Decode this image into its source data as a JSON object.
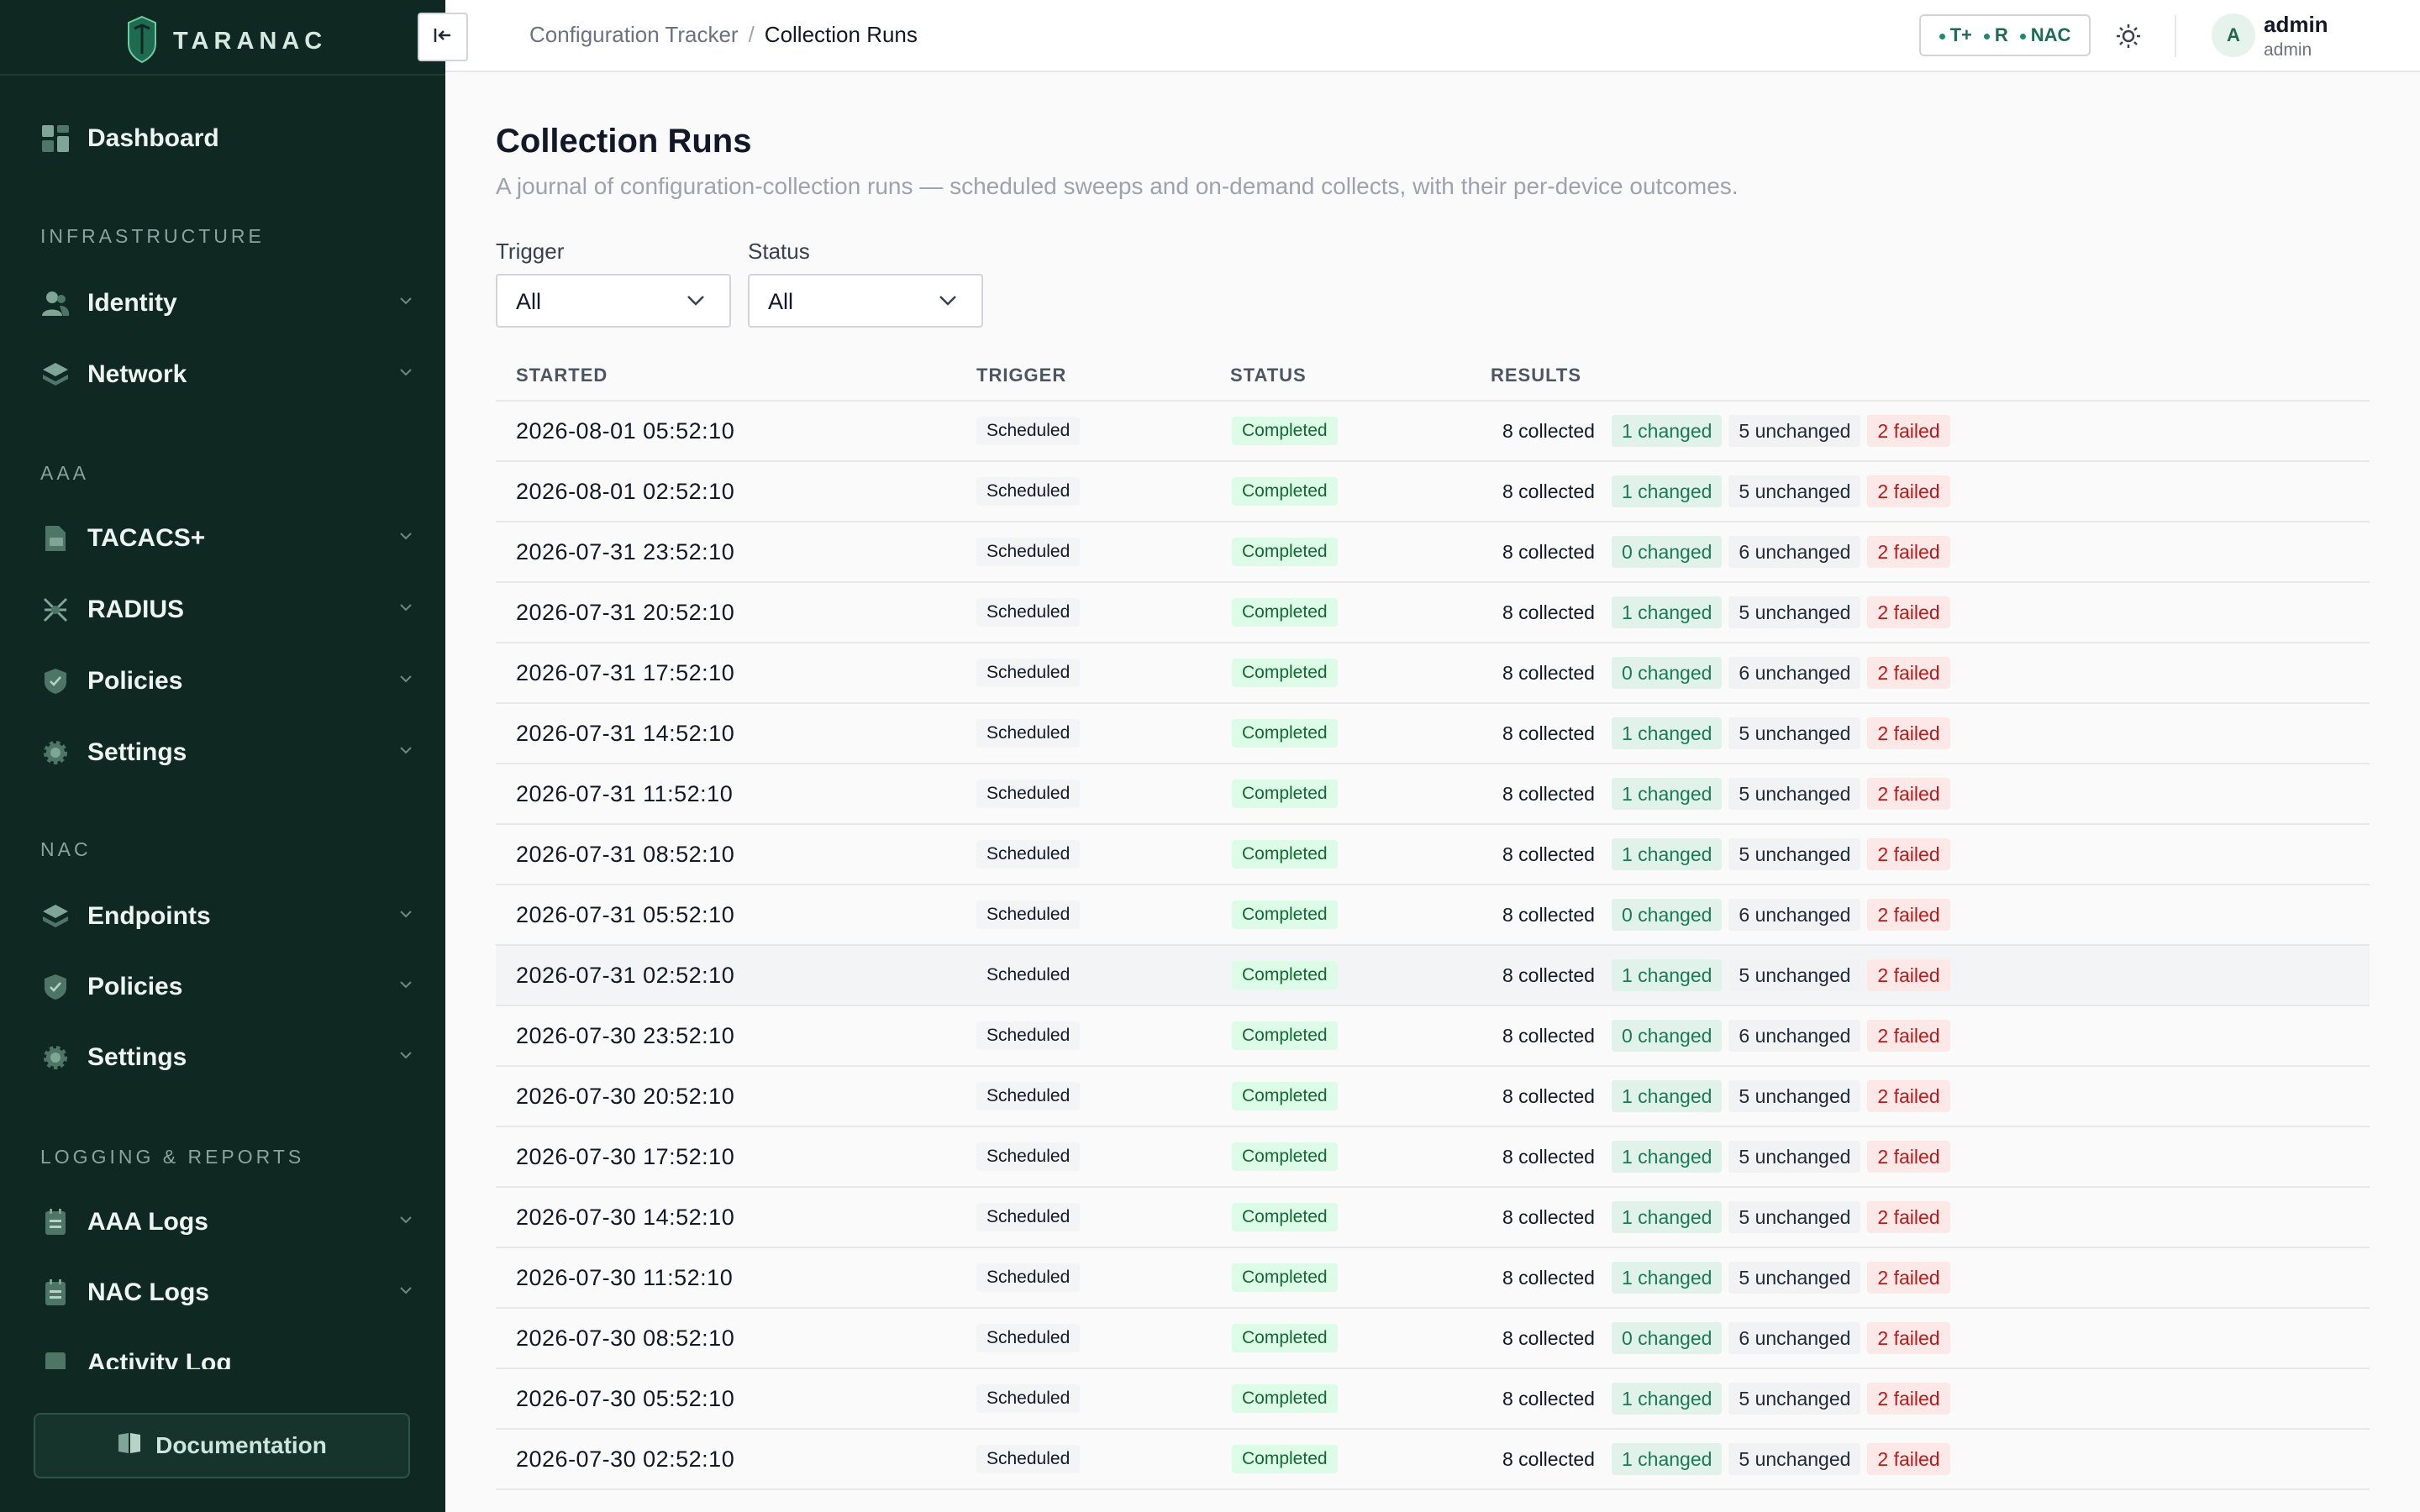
{
  "brand": {
    "name": "TARANAC"
  },
  "sidebar": {
    "dashboard": "Dashboard",
    "sections": [
      "INFRASTRUCTURE",
      "AAA",
      "NAC",
      "LOGGING & REPORTS"
    ],
    "infrastructure": [
      "Identity",
      "Network"
    ],
    "aaa": [
      "TACACS+",
      "RADIUS",
      "Policies",
      "Settings"
    ],
    "nac": [
      "Endpoints",
      "Policies",
      "Settings"
    ],
    "logging": [
      "AAA Logs",
      "NAC Logs",
      "Activity Log"
    ],
    "documentation": "Documentation"
  },
  "topbar": {
    "breadcrumb_parent": "Configuration Tracker",
    "breadcrumb_sep": "/",
    "breadcrumb_current": "Collection Runs",
    "services": [
      "T+",
      "R",
      "NAC"
    ],
    "avatar_initial": "A",
    "user_name": "admin",
    "user_role": "admin"
  },
  "page": {
    "title": "Collection Runs",
    "subtitle": "A journal of configuration-collection runs — scheduled sweeps and on-demand collects, with their per-device outcomes."
  },
  "filters": {
    "trigger_label": "Trigger",
    "trigger_value": "All",
    "status_label": "Status",
    "status_value": "All"
  },
  "table": {
    "headers": [
      "STARTED",
      "TRIGGER",
      "STATUS",
      "RESULTS"
    ],
    "rows": [
      {
        "started": "2026-08-01 05:52:10",
        "trigger": "Scheduled",
        "status": "Completed",
        "collected": "8 collected",
        "changed": "1 changed",
        "unchanged": "5 unchanged",
        "failed": "2 failed"
      },
      {
        "started": "2026-08-01 02:52:10",
        "trigger": "Scheduled",
        "status": "Completed",
        "collected": "8 collected",
        "changed": "1 changed",
        "unchanged": "5 unchanged",
        "failed": "2 failed"
      },
      {
        "started": "2026-07-31 23:52:10",
        "trigger": "Scheduled",
        "status": "Completed",
        "collected": "8 collected",
        "changed": "0 changed",
        "unchanged": "6 unchanged",
        "failed": "2 failed"
      },
      {
        "started": "2026-07-31 20:52:10",
        "trigger": "Scheduled",
        "status": "Completed",
        "collected": "8 collected",
        "changed": "1 changed",
        "unchanged": "5 unchanged",
        "failed": "2 failed"
      },
      {
        "started": "2026-07-31 17:52:10",
        "trigger": "Scheduled",
        "status": "Completed",
        "collected": "8 collected",
        "changed": "0 changed",
        "unchanged": "6 unchanged",
        "failed": "2 failed"
      },
      {
        "started": "2026-07-31 14:52:10",
        "trigger": "Scheduled",
        "status": "Completed",
        "collected": "8 collected",
        "changed": "1 changed",
        "unchanged": "5 unchanged",
        "failed": "2 failed"
      },
      {
        "started": "2026-07-31 11:52:10",
        "trigger": "Scheduled",
        "status": "Completed",
        "collected": "8 collected",
        "changed": "1 changed",
        "unchanged": "5 unchanged",
        "failed": "2 failed"
      },
      {
        "started": "2026-07-31 08:52:10",
        "trigger": "Scheduled",
        "status": "Completed",
        "collected": "8 collected",
        "changed": "1 changed",
        "unchanged": "5 unchanged",
        "failed": "2 failed"
      },
      {
        "started": "2026-07-31 05:52:10",
        "trigger": "Scheduled",
        "status": "Completed",
        "collected": "8 collected",
        "changed": "0 changed",
        "unchanged": "6 unchanged",
        "failed": "2 failed"
      },
      {
        "started": "2026-07-31 02:52:10",
        "trigger": "Scheduled",
        "status": "Completed",
        "collected": "8 collected",
        "changed": "1 changed",
        "unchanged": "5 unchanged",
        "failed": "2 failed"
      },
      {
        "started": "2026-07-30 23:52:10",
        "trigger": "Scheduled",
        "status": "Completed",
        "collected": "8 collected",
        "changed": "0 changed",
        "unchanged": "6 unchanged",
        "failed": "2 failed"
      },
      {
        "started": "2026-07-30 20:52:10",
        "trigger": "Scheduled",
        "status": "Completed",
        "collected": "8 collected",
        "changed": "1 changed",
        "unchanged": "5 unchanged",
        "failed": "2 failed"
      },
      {
        "started": "2026-07-30 17:52:10",
        "trigger": "Scheduled",
        "status": "Completed",
        "collected": "8 collected",
        "changed": "1 changed",
        "unchanged": "5 unchanged",
        "failed": "2 failed"
      },
      {
        "started": "2026-07-30 14:52:10",
        "trigger": "Scheduled",
        "status": "Completed",
        "collected": "8 collected",
        "changed": "1 changed",
        "unchanged": "5 unchanged",
        "failed": "2 failed"
      },
      {
        "started": "2026-07-30 11:52:10",
        "trigger": "Scheduled",
        "status": "Completed",
        "collected": "8 collected",
        "changed": "1 changed",
        "unchanged": "5 unchanged",
        "failed": "2 failed"
      },
      {
        "started": "2026-07-30 08:52:10",
        "trigger": "Scheduled",
        "status": "Completed",
        "collected": "8 collected",
        "changed": "0 changed",
        "unchanged": "6 unchanged",
        "failed": "2 failed"
      },
      {
        "started": "2026-07-30 05:52:10",
        "trigger": "Scheduled",
        "status": "Completed",
        "collected": "8 collected",
        "changed": "1 changed",
        "unchanged": "5 unchanged",
        "failed": "2 failed"
      },
      {
        "started": "2026-07-30 02:52:10",
        "trigger": "Scheduled",
        "status": "Completed",
        "collected": "8 collected",
        "changed": "1 changed",
        "unchanged": "5 unchanged",
        "failed": "2 failed"
      }
    ]
  },
  "colors": {
    "sidebar_bg": "#0f2822",
    "accent": "#1f8a63",
    "changed": "#1a7a55",
    "failed": "#b91c1c",
    "completed_bg": "#dcfce7"
  }
}
